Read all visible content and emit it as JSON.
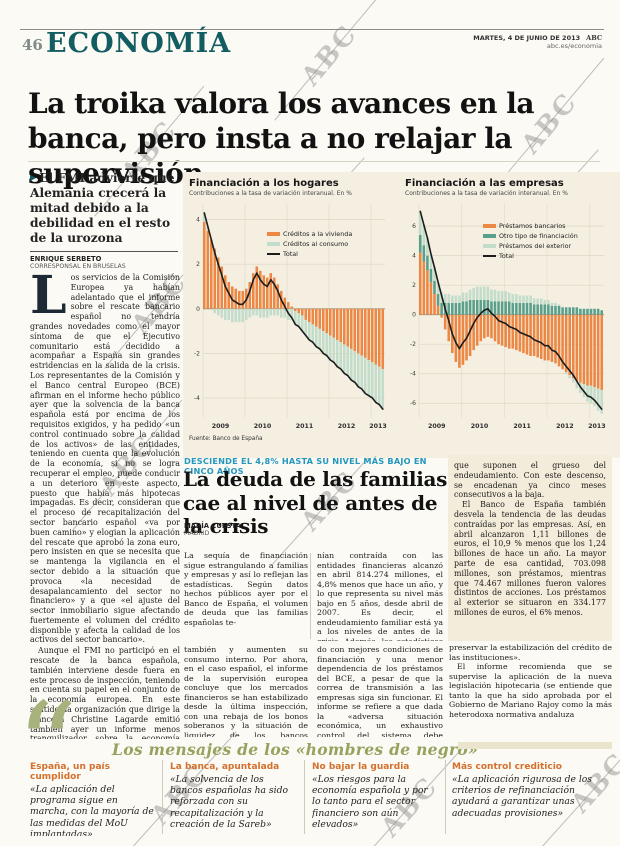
{
  "page": {
    "number": "46",
    "section": "ECONOMÍA",
    "date": "MARTES, 4 DE JUNIO DE 2013",
    "brand": "ABC",
    "site": "abc.es/economia",
    "watermark": "ABC"
  },
  "lead": {
    "headline": "La troika valora los avances en la banca, pero insta a no relajar la supervisión",
    "summary": "El FMI advierte que Alemania crecerá la mitad debido a la debilidad en el resto de la urozona",
    "byline": {
      "name": "ENRIQUE SERBETO",
      "role": "CORRESPONSAL EN BRUSELAS"
    },
    "dropcap": "L",
    "p1": "os servicios de la Comisión Europea ya habían adelantado que el informe sobre el rescate bancario español no tendría grandes novedades como el mayor síntoma de que el Ejecutivo comunitario está decidido a acompañar a España sin grandes estridencias en la salida de la crisis. Los representantes de la Comisión y el Banco central Europeo (BCE) afirman en el informe hecho público ayer que la solvencia de la banca española está por encima de los requisitos exigidos, y ha pedido «un control continuado sobre la calidad de los activos» de las entidades, teniendo en cuenta que la evolución de la economía, si no se logra recuperar el empleo, puede conducir a un deterioro en este aspecto, puesto que había más hipotecas impagadas. Es decir, consideran que el proceso de recapitalización del sector bancario español «va por buen camino» y elogian la aplicación del rescate que aprobó la zona euro, pero insisten en que se necesita que se mantenga la vigilancia en el sector debido a la situación que provoca «la necesidad de desapalancamiento del sector no financiero» y a que «el ajuste del sector inmobiliario sigue afectando fuertemente el volumen del crédito disponible y afecta la calidad de los activos del sector bancario».",
    "p2": "Aunque el FMI no participó en el rescate de la banca española, también interviene desde fuera en este proceso de inspección, teniendo en cuenta su papel en el conjunto de la economía europea. En este sentido, la organización que dirige la francesa Christine Lagarde emitió también ayer un informe menos tranquilizador sobre la economía alemana, cuyo crecimiento previsto para este año de 0,6 ha reducido a la mitad (0,3) y lo pone en relación a la posibilidad de que otros países de la zona euro no logren despegar",
    "cont_a": "también y aumenten su consumo interno. Por ahora, en el caso español, el informe de la supervisión europea concluye que los mercados financieros se han estabilizado desde la última inspección, con una rebaja de los bonos soberanos y la situación de liquidez de los bancos españoles ha progresa-",
    "cont_b": "do con mejores condiciones de financiación y una menor dependencia de los préstamos del BCE, a pesar de que la correa de transmisión a las empresas siga sin funcionar. El informe se refiere a que dada la «adversa situación económica, un exhaustivo control del sistema debe continuar para",
    "cont_c1": "preservar la estabilización del crédito de las instituciones».",
    "cont_c2": "El informe recomienda que se supervise la aplicación de la nueva legislación hipotecaria (se entiende que tanto la que ha sido aprobada por el Gobierno de Mariano Rajoy como la más heterodoxa normativa andaluza"
  },
  "debt": {
    "kicker": "DESCIENDE EL 4,8% HASTA SU NIVEL MÁS BAJO EN CINCO AÑOS",
    "headline": "La deuda de las familias cae al nivel de antes de la crisis",
    "byline": {
      "name": "MARÍA CUESTA",
      "place": "MADRID"
    },
    "col1": "La sequía de financiación sigue estrangulando a familias y empresas y así lo reflejan las estadísticas. Según datos hechos públicos ayer por el Banco de España, el volumen de deuda que las familias españolas te-",
    "col2": "nían contraída con las entidades financieras alcanzó en abril 814.274 millones, el 4,8% menos que hace un año, y lo que representa su nivel más bajo en 5 años, desde abril de 2007. Es decir, el endeudamiento familiar está ya a los niveles de antes de la crisis. Además, las estadísticas reflejan la caída del 4,6% de las hipotecas,",
    "box": {
      "p1": "que suponen el grueso del endeudamiento. Con este descenso, se encadenan ya cinco meses consecutivos a la baja.",
      "p2": "El Banco de España también desvela la tendencia de las deudas contraídas por las empresas. Así, en abril alcanzaron 1,11 billones de euros, el 10,9 % menos que los 1,24 billones de hace un año. La mayor parte de esa cantidad, 703.098 millones, son préstamos, mientras que 74.467 millones fueron valores distintos de acciones. Los préstamos al exterior se situaron en 334.177 millones de euros, el 6% menos."
    }
  },
  "quotes": {
    "heading": "Los mensajes de los «hombres de negro»",
    "items": [
      {
        "title": "España, un país cumplidor",
        "text": "«La aplicación del programa sigue en marcha, con la mayoría de las medidas del MoU implantadas»"
      },
      {
        "title": "La banca, apuntalada",
        "text": "«La solvencia de los bancos españolas ha sido reforzada con su recapitalización y la creación de la Sareb»"
      },
      {
        "title": "No bajar la guardia",
        "text": "«Los riesgos para la economía española y por lo tanto para el sector financiero son aún elevados»"
      },
      {
        "title": "Más control crediticio",
        "text": "«La aplicación rigurosa de los criterios de refinanciación ayudará a garantizar unas adecuadas provisiones»"
      }
    ]
  },
  "chart_data": [
    {
      "type": "bar",
      "title": "Financiación a los hogares",
      "subtitle": "Contribuciones a la tasa de variación interanual. En %",
      "source": "Fuente: Banco de España",
      "x_ticks": [
        "2009",
        "2010",
        "2011",
        "2012",
        "2013"
      ],
      "x_tick_pos": [
        5,
        17,
        29,
        41,
        50
      ],
      "x_gridlines": [
        0,
        12,
        24,
        36,
        48
      ],
      "ylim": [
        -4.9,
        4.7
      ],
      "yticks": [
        4,
        2,
        0,
        -2,
        -4
      ],
      "legend_position": "top-right",
      "grid": true,
      "series": [
        {
          "name": "Créditos a la vivienda",
          "type": "bar",
          "color": "#ec8744",
          "values": [
            3.9,
            3.5,
            3.1,
            2.7,
            2.3,
            1.9,
            1.5,
            1.2,
            1.0,
            0.9,
            0.8,
            0.8,
            0.9,
            1.2,
            1.6,
            1.9,
            1.7,
            1.5,
            1.4,
            1.6,
            1.4,
            1.1,
            0.8,
            0.5,
            0.3,
            0.1,
            -0.1,
            -0.2,
            -0.3,
            -0.5,
            -0.6,
            -0.7,
            -0.8,
            -0.9,
            -1.0,
            -1.1,
            -1.2,
            -1.3,
            -1.4,
            -1.5,
            -1.6,
            -1.7,
            -1.8,
            -1.9,
            -2.0,
            -2.1,
            -2.2,
            -2.3,
            -2.4,
            -2.5,
            -2.6,
            -2.7
          ]
        },
        {
          "name": "Créditos al consumo",
          "type": "bar",
          "color": "#c2ddcb",
          "values": [
            0.4,
            0.2,
            0.0,
            -0.2,
            -0.3,
            -0.4,
            -0.5,
            -0.5,
            -0.6,
            -0.6,
            -0.6,
            -0.6,
            -0.5,
            -0.4,
            -0.3,
            -0.3,
            -0.4,
            -0.4,
            -0.4,
            -0.3,
            -0.3,
            -0.3,
            -0.4,
            -0.4,
            -0.5,
            -0.5,
            -0.6,
            -0.6,
            -0.7,
            -0.7,
            -0.8,
            -0.8,
            -0.9,
            -0.9,
            -1.0,
            -1.0,
            -1.1,
            -1.1,
            -1.2,
            -1.2,
            -1.3,
            -1.3,
            -1.4,
            -1.4,
            -1.5,
            -1.5,
            -1.6,
            -1.6,
            -1.6,
            -1.7,
            -1.7,
            -1.8
          ]
        },
        {
          "name": "Total",
          "type": "line",
          "color": "#1c1c1c",
          "values": [
            4.3,
            3.7,
            3.1,
            2.5,
            2.0,
            1.5,
            1.0,
            0.7,
            0.4,
            0.3,
            0.2,
            0.2,
            0.4,
            0.8,
            1.3,
            1.6,
            1.3,
            1.1,
            1.0,
            1.3,
            1.1,
            0.8,
            0.4,
            0.1,
            -0.2,
            -0.4,
            -0.7,
            -0.8,
            -1.0,
            -1.2,
            -1.4,
            -1.5,
            -1.7,
            -1.8,
            -2.0,
            -2.1,
            -2.3,
            -2.4,
            -2.6,
            -2.7,
            -2.9,
            -3.0,
            -3.2,
            -3.3,
            -3.5,
            -3.6,
            -3.8,
            -3.9,
            -4.0,
            -4.2,
            -4.3,
            -4.5
          ]
        }
      ]
    },
    {
      "type": "bar",
      "title": "Financiación a las empresas",
      "subtitle": "Contribuciones a la tasa de variación interanual. En %",
      "x_ticks": [
        "2009",
        "2010",
        "2011",
        "2012",
        "2013"
      ],
      "x_tick_pos": [
        5,
        17,
        29,
        41,
        50
      ],
      "x_gridlines": [
        0,
        12,
        24,
        36,
        48
      ],
      "ylim": [
        -7.0,
        7.5
      ],
      "yticks": [
        6,
        4,
        2,
        0,
        -2,
        -4,
        -6
      ],
      "legend_position": "top-right",
      "grid": true,
      "series": [
        {
          "name": "Préstamos bancarios",
          "type": "bar",
          "color": "#ec8744",
          "values": [
            4.2,
            3.6,
            3.0,
            2.2,
            1.4,
            0.6,
            -0.2,
            -1.0,
            -1.8,
            -2.6,
            -3.2,
            -3.6,
            -3.4,
            -3.1,
            -2.8,
            -2.4,
            -2.1,
            -1.8,
            -1.6,
            -1.5,
            -1.6,
            -1.8,
            -2.0,
            -2.1,
            -2.2,
            -2.3,
            -2.3,
            -2.4,
            -2.5,
            -2.6,
            -2.7,
            -2.8,
            -2.8,
            -2.9,
            -3.0,
            -3.1,
            -3.1,
            -3.2,
            -3.3,
            -3.5,
            -3.7,
            -3.9,
            -4.1,
            -4.3,
            -4.5,
            -4.6,
            -4.7,
            -4.8,
            -4.8,
            -4.9,
            -5.0,
            -5.1
          ]
        },
        {
          "name": "Otro tipo de financiación",
          "type": "bar",
          "color": "#58a08c",
          "values": [
            1.2,
            1.1,
            1.0,
            0.9,
            0.9,
            0.8,
            0.8,
            0.8,
            0.8,
            0.8,
            0.8,
            0.8,
            0.9,
            0.9,
            1.0,
            1.0,
            1.0,
            1.0,
            1.0,
            1.0,
            0.9,
            0.9,
            0.9,
            0.9,
            0.9,
            0.9,
            0.8,
            0.8,
            0.8,
            0.8,
            0.8,
            0.8,
            0.7,
            0.7,
            0.7,
            0.7,
            0.7,
            0.6,
            0.6,
            0.6,
            0.5,
            0.5,
            0.5,
            0.5,
            0.5,
            0.4,
            0.4,
            0.4,
            0.4,
            0.4,
            0.4,
            0.3
          ]
        },
        {
          "name": "Préstamos del exterior",
          "type": "bar",
          "color": "#c2ddcb",
          "values": [
            1.6,
            1.4,
            1.2,
            1.0,
            0.9,
            0.8,
            0.7,
            0.6,
            0.6,
            0.5,
            0.5,
            0.5,
            0.6,
            0.6,
            0.7,
            0.8,
            0.9,
            0.9,
            0.9,
            0.9,
            0.8,
            0.8,
            0.7,
            0.7,
            0.7,
            0.6,
            0.6,
            0.6,
            0.5,
            0.5,
            0.5,
            0.5,
            0.4,
            0.4,
            0.4,
            0.3,
            0.3,
            0.2,
            0.2,
            0.1,
            0.0,
            -0.1,
            -0.2,
            -0.3,
            -0.5,
            -0.7,
            -0.9,
            -1.1,
            -1.2,
            -1.3,
            -1.5,
            -1.6
          ]
        },
        {
          "name": "Total",
          "type": "line",
          "color": "#1c1c1c",
          "values": [
            7.0,
            6.1,
            5.2,
            4.1,
            3.2,
            2.2,
            1.3,
            0.4,
            -0.4,
            -1.3,
            -1.9,
            -2.3,
            -1.9,
            -1.6,
            -1.1,
            -0.6,
            -0.2,
            0.1,
            0.3,
            0.4,
            0.1,
            -0.1,
            -0.4,
            -0.5,
            -0.6,
            -0.8,
            -0.9,
            -1.0,
            -1.2,
            -1.3,
            -1.4,
            -1.5,
            -1.7,
            -1.8,
            -1.9,
            -2.1,
            -2.1,
            -2.4,
            -2.5,
            -2.8,
            -3.2,
            -3.5,
            -3.8,
            -4.1,
            -4.5,
            -4.9,
            -5.2,
            -5.5,
            -5.6,
            -5.8,
            -6.1,
            -6.4
          ]
        }
      ]
    }
  ]
}
